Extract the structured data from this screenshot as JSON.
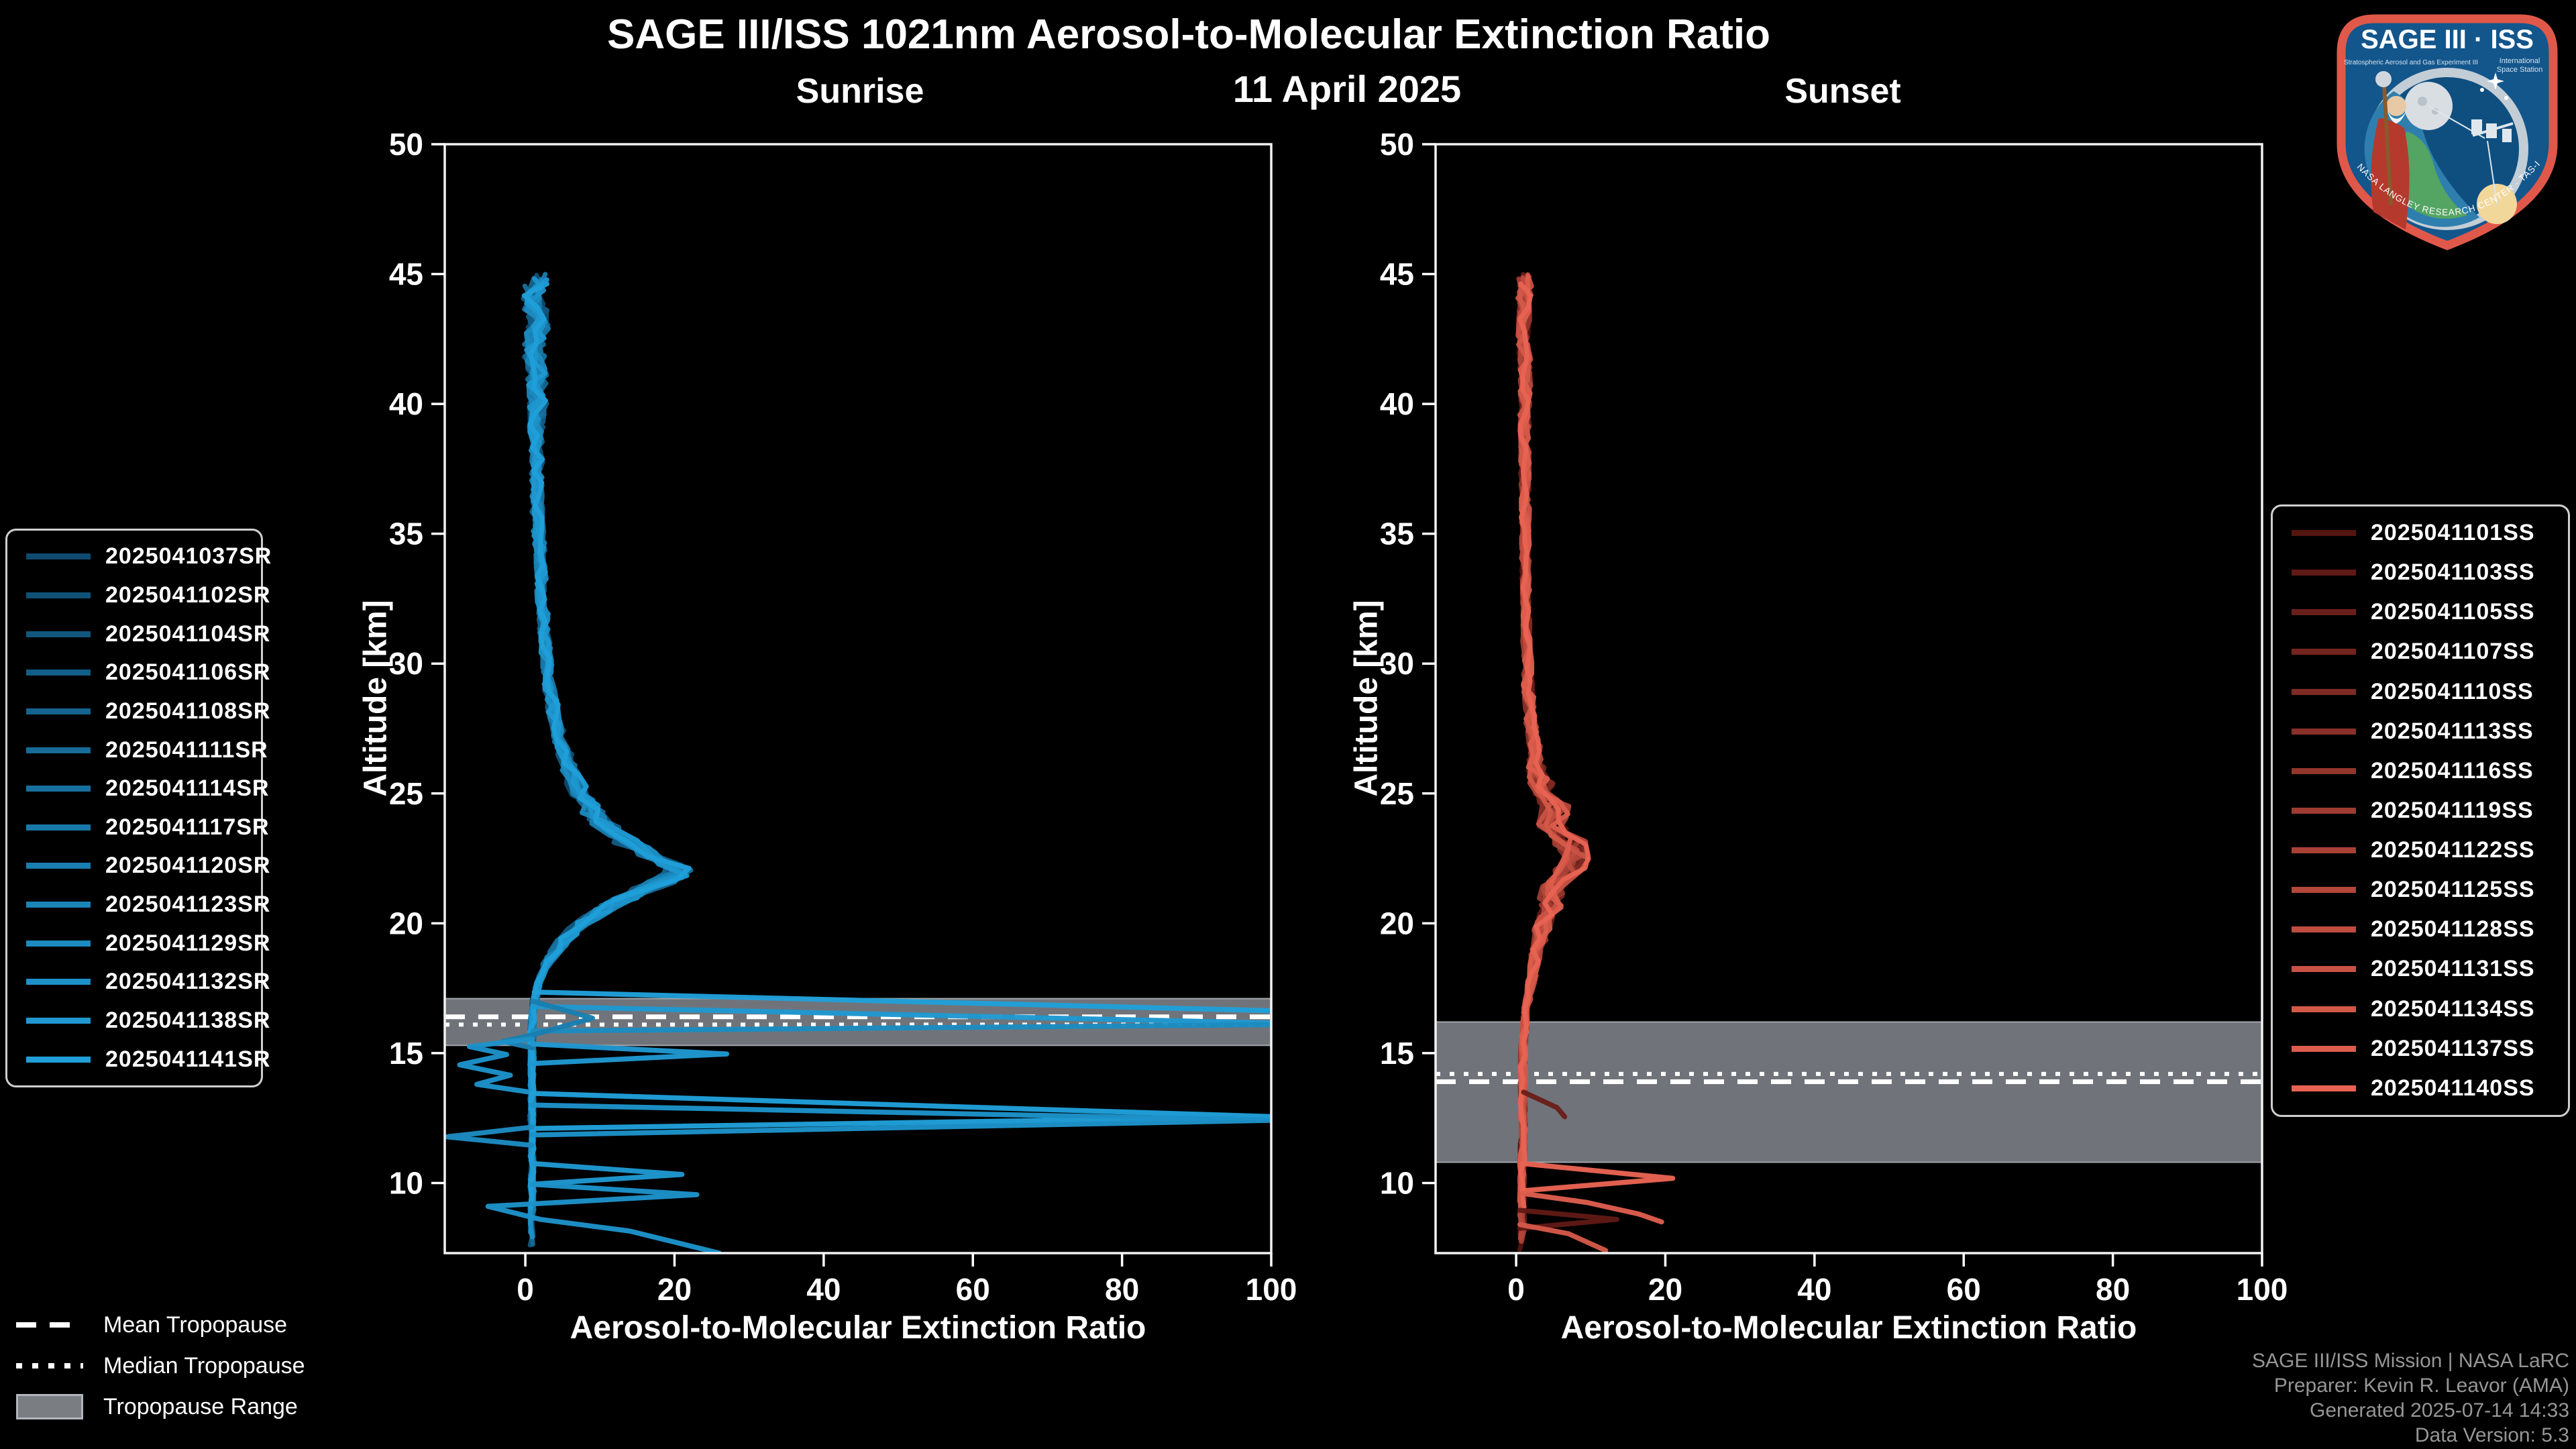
{
  "header": {
    "title": "SAGE III/ISS 1021nm Aerosol-to-Molecular Extinction Ratio",
    "date": "11 April 2025"
  },
  "credit": {
    "lines": [
      "SAGE III/ISS Mission | NASA LaRC",
      "Preparer: Kevin R. Leavor (AMA)",
      "Generated 2025-07-14 14:33",
      "Data Version: 5.3"
    ]
  },
  "tropopause_legend": {
    "items": [
      {
        "label": "Mean Tropopause",
        "style": "dashed"
      },
      {
        "label": "Median Tropopause",
        "style": "dotted"
      },
      {
        "label": "Tropopause Range",
        "style": "band"
      }
    ]
  },
  "logo": {
    "title": "SAGE III · ISS",
    "subtitle_left": "Stratospheric Aerosol and Gas Experiment III",
    "subtitle_right_1": "International",
    "subtitle_right_2": "Space Station",
    "ring_text": "BALL · NASA LANGLEY RESEARCH CENTER · TAS-I · ESA"
  },
  "colors": {
    "background": "#000000",
    "text": "#ffffff",
    "credit_text": "#969696",
    "tropopause_band": "#70747a",
    "tropopause_band_edge": "#a2a6ab",
    "tropopause_line": "#ffffff",
    "frame": "#f2f2f2",
    "logo_border": "#e0584a",
    "logo_blue": "#13568c"
  },
  "chart_data": [
    {
      "id": "sunrise",
      "type": "line",
      "title": "Sunrise",
      "xlabel": "Aerosol-to-Molecular Extinction Ratio",
      "ylabel": "Altitude [km]",
      "xlim": [
        -10.8,
        100
      ],
      "ylim": [
        7.3,
        50
      ],
      "xticks": [
        0,
        20,
        40,
        60,
        80,
        100
      ],
      "yticks": [
        10,
        15,
        20,
        25,
        30,
        35,
        40,
        45,
        50
      ],
      "grid": false,
      "tropopause": {
        "mean_km": 16.4,
        "median_km": 16.1,
        "range_km": [
          15.3,
          17.1
        ]
      },
      "series": [
        {
          "label": "2025041037SR",
          "color": "#0F4A6E"
        },
        {
          "label": "2025041102SR",
          "color": "#105176"
        },
        {
          "label": "2025041104SR",
          "color": "#12577E"
        },
        {
          "label": "2025041106SR",
          "color": "#135E87"
        },
        {
          "label": "2025041108SR",
          "color": "#14648F"
        },
        {
          "label": "2025041111SR",
          "color": "#166B97"
        },
        {
          "label": "2025041114SR",
          "color": "#17719F"
        },
        {
          "label": "2025041117SR",
          "color": "#1878A8"
        },
        {
          "label": "2025041120SR",
          "color": "#197EB0"
        },
        {
          "label": "2025041123SR",
          "color": "#1B85B8"
        },
        {
          "label": "2025041129SR",
          "color": "#1C8BC0"
        },
        {
          "label": "2025041132SR",
          "color": "#1D92C9"
        },
        {
          "label": "2025041138SR",
          "color": "#1F98D1"
        },
        {
          "label": "2025041141SR",
          "color": "#209FD9"
        }
      ],
      "mean_profile": [
        [
          45,
          1.5
        ],
        [
          44,
          1.2
        ],
        [
          43,
          1.7
        ],
        [
          42,
          1.1
        ],
        [
          41,
          1.6
        ],
        [
          40,
          1.7
        ],
        [
          39,
          1.5
        ],
        [
          38,
          1.6
        ],
        [
          37,
          1.5
        ],
        [
          36,
          1.6
        ],
        [
          35,
          1.8
        ],
        [
          34,
          2.0
        ],
        [
          33,
          2.2
        ],
        [
          32,
          2.4
        ],
        [
          31,
          2.6
        ],
        [
          30,
          2.9
        ],
        [
          29,
          3.3
        ],
        [
          28,
          3.9
        ],
        [
          27,
          4.7
        ],
        [
          26,
          5.8
        ],
        [
          25,
          7.3
        ],
        [
          24.5,
          8.4
        ],
        [
          24,
          9.8
        ],
        [
          23.5,
          11.8
        ],
        [
          23,
          14.2
        ],
        [
          22.6,
          17.2
        ],
        [
          22.2,
          20.3
        ],
        [
          21.8,
          19.6
        ],
        [
          21.4,
          16.8
        ],
        [
          21,
          13.8
        ],
        [
          20.5,
          10.2
        ],
        [
          20,
          7.6
        ],
        [
          19.5,
          5.6
        ],
        [
          19,
          4.2
        ],
        [
          18.5,
          3.0
        ],
        [
          18,
          2.2
        ],
        [
          17.5,
          1.6
        ],
        [
          17,
          1.2
        ],
        [
          16.5,
          1.0
        ],
        [
          16,
          0.9
        ],
        [
          15,
          0.9
        ],
        [
          14,
          0.9
        ],
        [
          13,
          0.9
        ],
        [
          12,
          0.9
        ],
        [
          11,
          0.9
        ],
        [
          10,
          0.9
        ],
        [
          9,
          0.9
        ],
        [
          8,
          0.9
        ],
        [
          7.3,
          0.9
        ]
      ],
      "noise_amp": [
        [
          45,
          1.7
        ],
        [
          41,
          1.4
        ],
        [
          38,
          0.8
        ],
        [
          30,
          0.7
        ],
        [
          27,
          0.9
        ],
        [
          24,
          1.6
        ],
        [
          22,
          2.2
        ],
        [
          21,
          1.8
        ],
        [
          20,
          1.2
        ],
        [
          18.5,
          0.6
        ],
        [
          17.5,
          0.35
        ],
        [
          7.3,
          0.3
        ]
      ],
      "excursions": [
        {
          "series": 13,
          "points": [
            [
              17.35,
              1.2
            ],
            [
              16.62,
              102
            ]
          ]
        },
        {
          "series": 12,
          "points": [
            [
              16.8,
              1.0
            ],
            [
              16.15,
              102
            ]
          ]
        },
        {
          "series": 10,
          "points": [
            [
              16.1,
              102
            ],
            [
              15.85,
              1.0
            ]
          ]
        },
        {
          "series": 8,
          "points": [
            [
              17.0,
              1.0
            ],
            [
              16.35,
              9
            ],
            [
              15.7,
              1.0
            ],
            [
              15.45,
              -3
            ],
            [
              15.2,
              1.0
            ]
          ]
        },
        {
          "series": 11,
          "points": [
            [
              15.55,
              0.9
            ],
            [
              15.25,
              -7.5
            ],
            [
              14.95,
              -2.5
            ],
            [
              14.55,
              -8.8
            ],
            [
              14.15,
              -2.0
            ],
            [
              13.8,
              -6.5
            ],
            [
              13.5,
              0.6
            ]
          ]
        },
        {
          "series": 12,
          "points": [
            [
              15.35,
              1.0
            ],
            [
              14.97,
              27
            ],
            [
              14.6,
              1.0
            ]
          ]
        },
        {
          "series": 13,
          "points": [
            [
              13.45,
              0.9
            ],
            [
              12.55,
              101
            ],
            [
              12.1,
              0.9
            ]
          ]
        },
        {
          "series": 11,
          "points": [
            [
              13.0,
              0.9
            ],
            [
              12.42,
              101
            ],
            [
              11.85,
              0.9
            ]
          ]
        },
        {
          "series": 10,
          "points": [
            [
              12.15,
              0.9
            ],
            [
              11.78,
              -10.5
            ],
            [
              11.45,
              0.9
            ]
          ]
        },
        {
          "series": 12,
          "points": [
            [
              10.75,
              0.9
            ],
            [
              10.33,
              21
            ],
            [
              9.95,
              0.9
            ]
          ]
        },
        {
          "series": 11,
          "points": [
            [
              9.95,
              0.9
            ],
            [
              9.55,
              23
            ],
            [
              9.1,
              -5
            ],
            [
              8.6,
              2
            ],
            [
              8.15,
              14
            ],
            [
              7.3,
              26
            ]
          ]
        }
      ]
    },
    {
      "id": "sunset",
      "type": "line",
      "title": "Sunset",
      "xlabel": "Aerosol-to-Molecular Extinction Ratio",
      "ylabel": "Altitude [km]",
      "xlim": [
        -10.8,
        100
      ],
      "ylim": [
        7.3,
        50
      ],
      "xticks": [
        0,
        20,
        40,
        60,
        80,
        100
      ],
      "yticks": [
        10,
        15,
        20,
        25,
        30,
        35,
        40,
        45,
        50
      ],
      "grid": false,
      "tropopause": {
        "mean_km": 13.9,
        "median_km": 14.2,
        "range_km": [
          10.8,
          16.2
        ]
      },
      "series": [
        {
          "label": "2025041101SS",
          "color": "#541410"
        },
        {
          "label": "2025041103SS",
          "color": "#5F1A15"
        },
        {
          "label": "2025041105SS",
          "color": "#691F1A"
        },
        {
          "label": "2025041107SS",
          "color": "#74251E"
        },
        {
          "label": "2025041110SS",
          "color": "#7E2B23"
        },
        {
          "label": "2025041113SS",
          "color": "#893028"
        },
        {
          "label": "2025041116SS",
          "color": "#93362C"
        },
        {
          "label": "2025041119SS",
          "color": "#9E3C31"
        },
        {
          "label": "2025041122SS",
          "color": "#A94136"
        },
        {
          "label": "2025041125SS",
          "color": "#B3473A"
        },
        {
          "label": "2025041128SS",
          "color": "#BE4C3F"
        },
        {
          "label": "2025041131SS",
          "color": "#C85244"
        },
        {
          "label": "2025041134SS",
          "color": "#D35848"
        },
        {
          "label": "2025041137SS",
          "color": "#DD5D4D"
        },
        {
          "label": "2025041140SS",
          "color": "#E86352"
        }
      ],
      "mean_profile": [
        [
          45,
          1.2
        ],
        [
          43,
          1.0
        ],
        [
          41,
          1.3
        ],
        [
          39,
          1.1
        ],
        [
          37,
          1.2
        ],
        [
          35,
          1.2
        ],
        [
          33,
          1.3
        ],
        [
          31,
          1.4
        ],
        [
          30,
          1.5
        ],
        [
          29,
          1.6
        ],
        [
          28,
          1.9
        ],
        [
          27,
          2.3
        ],
        [
          26,
          2.8
        ],
        [
          25,
          3.8
        ],
        [
          24.4,
          5.5
        ],
        [
          23.8,
          4.8
        ],
        [
          23.2,
          7.0
        ],
        [
          22.6,
          8.5
        ],
        [
          22.1,
          7.0
        ],
        [
          21.6,
          5.2
        ],
        [
          21.1,
          4.6
        ],
        [
          20.6,
          4.6
        ],
        [
          20.1,
          3.9
        ],
        [
          19.5,
          3.2
        ],
        [
          19,
          2.8
        ],
        [
          18,
          2.2
        ],
        [
          17,
          1.5
        ],
        [
          16,
          1.1
        ],
        [
          15,
          0.9
        ],
        [
          14,
          0.9
        ],
        [
          13,
          0.9
        ],
        [
          12,
          0.9
        ],
        [
          11,
          0.8
        ],
        [
          10,
          0.8
        ],
        [
          9,
          0.8
        ],
        [
          8,
          0.8
        ],
        [
          7.3,
          0.8
        ]
      ],
      "noise_amp": [
        [
          45,
          1.0
        ],
        [
          40,
          0.7
        ],
        [
          32,
          0.5
        ],
        [
          27,
          0.8
        ],
        [
          25,
          1.8
        ],
        [
          22.5,
          2.4
        ],
        [
          21,
          1.6
        ],
        [
          19,
          0.8
        ],
        [
          17,
          0.4
        ],
        [
          7.3,
          0.35
        ]
      ],
      "excursions": [
        {
          "series": 2,
          "points": [
            [
              13.5,
              1.0
            ],
            [
              12.9,
              5.5
            ],
            [
              12.55,
              6.5
            ]
          ]
        },
        {
          "series": 14,
          "points": [
            [
              10.75,
              0.8
            ],
            [
              10.18,
              21
            ],
            [
              9.7,
              0.8
            ]
          ]
        },
        {
          "series": 13,
          "points": [
            [
              9.6,
              0.8
            ],
            [
              9.25,
              9.5
            ],
            [
              8.8,
              16.5
            ],
            [
              8.5,
              19.5
            ]
          ]
        },
        {
          "series": 1,
          "points": [
            [
              8.95,
              0.5
            ],
            [
              8.6,
              13.5
            ],
            [
              8.25,
              0.5
            ]
          ]
        },
        {
          "series": 12,
          "points": [
            [
              8.4,
              0.5
            ],
            [
              8.05,
              7
            ],
            [
              7.4,
              12
            ]
          ]
        }
      ]
    }
  ]
}
